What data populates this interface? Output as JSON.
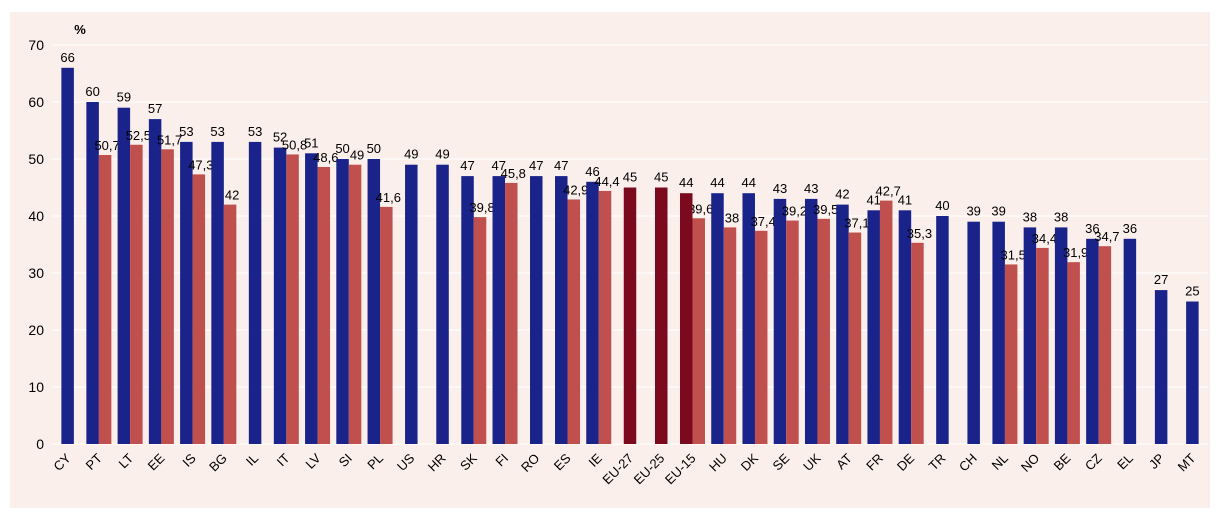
{
  "chart_data": {
    "type": "bar",
    "ylabel": "%",
    "ylim": [
      0,
      70
    ],
    "yticks": [
      0,
      10,
      20,
      30,
      40,
      50,
      60,
      70
    ],
    "grid": true,
    "categories": [
      "CY",
      "PT",
      "LT",
      "EE",
      "IS",
      "BG",
      "IL",
      "IT",
      "LV",
      "SI",
      "PL",
      "US",
      "HR",
      "SK",
      "FI",
      "RO",
      "ES",
      "IE",
      "EU-27",
      "EU-25",
      "EU-15",
      "HU",
      "DK",
      "SE",
      "UK",
      "AT",
      "FR",
      "DE",
      "TR",
      "CH",
      "NL",
      "NO",
      "BE",
      "CZ",
      "EL",
      "JP",
      "MT"
    ],
    "series": [
      {
        "values": [
          66,
          60,
          59,
          57,
          53,
          53,
          53,
          52,
          51,
          50,
          50,
          49,
          49,
          47,
          47,
          47,
          47,
          46,
          null,
          null,
          null,
          44,
          44,
          43,
          43,
          42,
          41,
          41,
          40,
          39,
          39,
          38,
          38,
          36,
          36,
          27,
          25
        ],
        "labels": [
          "66",
          "60",
          "59",
          "57",
          "53",
          "53",
          "53",
          "52",
          "51",
          "50",
          "50",
          "49",
          "49",
          "47",
          "47",
          "47",
          "47",
          "46",
          "",
          "",
          "",
          "44",
          "44",
          "43",
          "43",
          "42",
          "41",
          "41",
          "40",
          "39",
          "39",
          "38",
          "38",
          "36",
          "36",
          "27",
          "25"
        ]
      },
      {
        "values": [
          null,
          50.7,
          52.5,
          51.7,
          47.3,
          42,
          null,
          50.8,
          48.6,
          49,
          41.6,
          null,
          null,
          39.8,
          45.8,
          null,
          42.9,
          44.4,
          null,
          null,
          39.6,
          38,
          37.4,
          39.2,
          39.5,
          37.1,
          42.7,
          35.3,
          null,
          null,
          31.5,
          34.4,
          31.9,
          34.7,
          null,
          null,
          null
        ],
        "labels": [
          "",
          "50,7",
          "52,5",
          "51,7",
          "47,3",
          "42",
          "",
          "50,8",
          "48,6",
          "49",
          "41,6",
          "",
          "",
          "39,8",
          "45,8",
          "",
          "42,9",
          "44,4",
          "",
          "",
          "39,6",
          "38",
          "37,4",
          "39,2",
          "39,5",
          "37,1",
          "42,7",
          "35,3",
          "",
          "",
          "31,5",
          "34,4",
          "31,9",
          "34,7",
          "",
          "",
          ""
        ]
      },
      {
        "values": [
          null,
          null,
          null,
          null,
          null,
          null,
          null,
          null,
          null,
          null,
          null,
          null,
          null,
          null,
          null,
          null,
          null,
          null,
          45,
          45,
          44,
          null,
          null,
          null,
          null,
          null,
          null,
          null,
          null,
          null,
          null,
          null,
          null,
          null,
          null,
          null,
          null
        ],
        "labels": [
          "",
          "",
          "",
          "",
          "",
          "",
          "",
          "",
          "",
          "",
          "",
          "",
          "",
          "",
          "",
          "",
          "",
          "",
          "45",
          "45",
          "44",
          "",
          "",
          "",
          "",
          "",
          "",
          "",
          "",
          "",
          "",
          "",
          "",
          "",
          "",
          "",
          ""
        ]
      }
    ],
    "colors": {
      "series1": "#1a2389",
      "series2": "#c0504d",
      "eu_aggregate": "#7b0a1e",
      "background": "#fbefec",
      "grid": "#ffffff"
    }
  }
}
